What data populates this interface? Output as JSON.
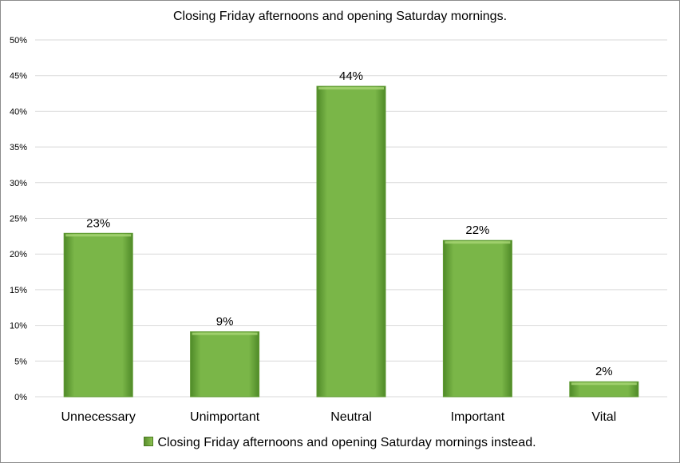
{
  "colors": {
    "bar_fill": "#7ab648",
    "bar_fill_dark": "#4f8a28",
    "bar_top": "#a9d675",
    "grid": "#d9d9d9"
  },
  "chart_data": {
    "type": "bar",
    "title": "Closing Friday afternoons and opening Saturday mornings.",
    "categories": [
      "Unnecessary",
      "Unimportant",
      "Neutral",
      "Important",
      "Vital"
    ],
    "series": [
      {
        "name": "Closing Friday afternoons and opening Saturday mornings instead.",
        "values": [
          0.229,
          0.091,
          0.435,
          0.219,
          0.021
        ],
        "data_labels": [
          "23%",
          "9%",
          "44%",
          "22%",
          "2%"
        ]
      }
    ],
    "y_ticks": [
      "0%",
      "5%",
      "10%",
      "15%",
      "20%",
      "25%",
      "30%",
      "35%",
      "40%",
      "45%",
      "50%"
    ],
    "ylim": [
      0,
      0.5
    ],
    "grid": true,
    "legend_position": "bottom",
    "xlabel": "",
    "ylabel": ""
  }
}
